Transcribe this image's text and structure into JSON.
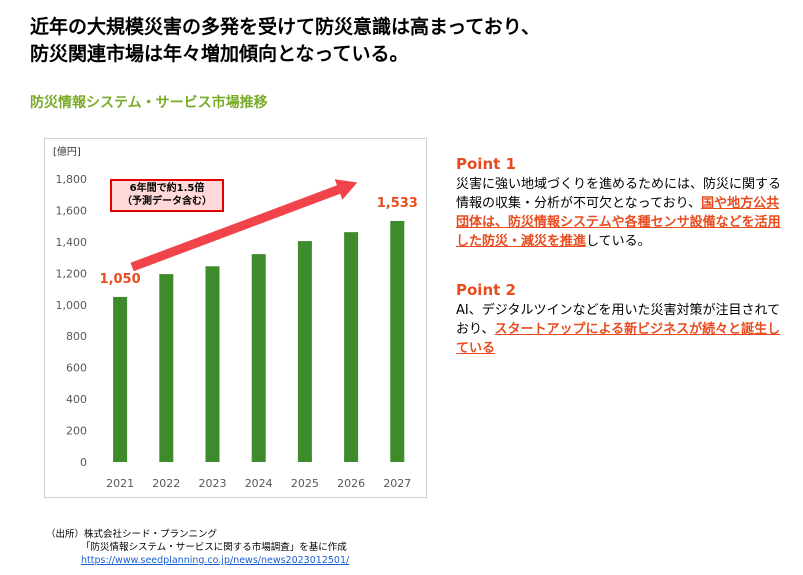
{
  "headline": {
    "line1": "近年の大規模災害の多発を受けて防災意識は高まっており、",
    "line2": "防災関連市場は年々増加傾向となっている。"
  },
  "subtitle": "防災情報システム・サービス市場推移",
  "callout": {
    "line1": "6年間で約1.5倍",
    "line2": "（予測データ含む）"
  },
  "point1": {
    "title": "Point 1",
    "text_a": "災害に強い地域づくりを進めるためには、防災に関する情報の収集・分析が不可欠となっており、",
    "highlight": "国や地方公共団体は、防災情報システムや各種センサ設備などを活用した防災・減災を推進",
    "text_b": "している。"
  },
  "point2": {
    "title": "Point 2",
    "text_a": "AI、デジタルツインなどを用いた災害対策が注目されており、",
    "highlight": "スタートアップによる新ビジネスが続々と誕生している"
  },
  "source": {
    "label": "（出所）",
    "company": "株式会社シード・プランニング",
    "report": "「防災情報システム・サービスに関する市場調査」を基に作成",
    "url": "https://www.seedplanning.co.jp/news/news2023012501/"
  },
  "colors": {
    "bar": "#3d8b2a",
    "accent": "#e84c1e",
    "arrow": "#f0444a",
    "subtitle": "#7aab28"
  },
  "chart_data": {
    "type": "bar",
    "unit_label": "[億円]",
    "categories": [
      "2021",
      "2022",
      "2023",
      "2024",
      "2025",
      "2026",
      "2027"
    ],
    "values": [
      1050,
      1195,
      1245,
      1322,
      1405,
      1462,
      1533
    ],
    "data_labels": {
      "2021": "1,050",
      "2027": "1,533"
    },
    "ylim": [
      0,
      1800
    ],
    "yticks": [
      0,
      200,
      400,
      600,
      800,
      1000,
      1200,
      1400,
      1600,
      1800
    ],
    "ytick_labels": [
      "0",
      "200",
      "400",
      "600",
      "800",
      "1,000",
      "1,200",
      "1,400",
      "1,600",
      "1,800"
    ],
    "grid": false,
    "legend": "none"
  }
}
